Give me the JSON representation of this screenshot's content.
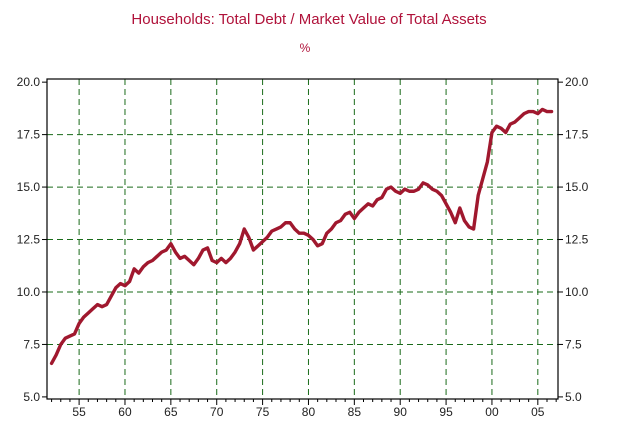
{
  "colors": {
    "title": "#b0123a",
    "line": "#a0182e",
    "grid": "#1a6b1a",
    "axis": "#000000",
    "background": "#ffffff"
  },
  "chart_data": {
    "type": "line",
    "title": "Households: Total Debt / Market Value of Total Assets",
    "unit": "%",
    "xlabel": "",
    "ylabel": "",
    "xlim": [
      1951.5,
      2007.2
    ],
    "ylim": [
      4.9,
      20.15
    ],
    "grid": true,
    "legend": "none",
    "y_ticks": [
      5.0,
      7.5,
      10.0,
      12.5,
      15.0,
      17.5,
      20.0
    ],
    "y_tick_labels": [
      "5.0",
      "7.5",
      "10.0",
      "12.5",
      "15.0",
      "17.5",
      "20.0"
    ],
    "x_ticks": [
      1955,
      1960,
      1965,
      1970,
      1975,
      1980,
      1985,
      1990,
      1995,
      2000,
      2005
    ],
    "x_tick_labels": [
      "55",
      "60",
      "65",
      "70",
      "75",
      "80",
      "85",
      "90",
      "95",
      "00",
      "05"
    ],
    "series": [
      {
        "name": "",
        "x": [
          1952.0,
          1952.5,
          1953.0,
          1953.5,
          1954.0,
          1954.5,
          1955.0,
          1955.5,
          1956.0,
          1956.5,
          1957.0,
          1957.5,
          1958.0,
          1958.5,
          1959.0,
          1959.5,
          1960.0,
          1960.5,
          1961.0,
          1961.5,
          1962.0,
          1962.5,
          1963.0,
          1963.5,
          1964.0,
          1964.5,
          1965.0,
          1965.5,
          1966.0,
          1966.5,
          1967.0,
          1967.5,
          1968.0,
          1968.5,
          1969.0,
          1969.5,
          1970.0,
          1970.5,
          1971.0,
          1971.5,
          1972.0,
          1972.5,
          1973.0,
          1973.5,
          1974.0,
          1974.5,
          1975.0,
          1975.5,
          1976.0,
          1976.5,
          1977.0,
          1977.5,
          1978.0,
          1978.5,
          1979.0,
          1979.5,
          1980.0,
          1980.5,
          1981.0,
          1981.5,
          1982.0,
          1982.5,
          1983.0,
          1983.5,
          1984.0,
          1984.5,
          1985.0,
          1985.5,
          1986.0,
          1986.5,
          1987.0,
          1987.5,
          1988.0,
          1988.5,
          1989.0,
          1989.5,
          1990.0,
          1990.5,
          1991.0,
          1991.5,
          1992.0,
          1992.5,
          1993.0,
          1993.5,
          1994.0,
          1994.5,
          1995.0,
          1995.5,
          1996.0,
          1996.5,
          1997.0,
          1997.5,
          1998.0,
          1998.5,
          1999.0,
          1999.5,
          2000.0,
          2000.5,
          2001.0,
          2001.5,
          2002.0,
          2002.5,
          2003.0,
          2003.5,
          2004.0,
          2004.5,
          2005.0,
          2005.5,
          2006.0,
          2006.5
        ],
        "values": [
          6.6,
          7.0,
          7.5,
          7.8,
          7.9,
          8.0,
          8.5,
          8.8,
          9.0,
          9.2,
          9.4,
          9.3,
          9.4,
          9.8,
          10.2,
          10.4,
          10.3,
          10.5,
          11.1,
          10.9,
          11.2,
          11.4,
          11.5,
          11.7,
          11.9,
          12.0,
          12.3,
          11.9,
          11.6,
          11.7,
          11.5,
          11.3,
          11.6,
          12.0,
          12.1,
          11.5,
          11.4,
          11.6,
          11.4,
          11.6,
          11.9,
          12.3,
          13.0,
          12.6,
          12.0,
          12.2,
          12.4,
          12.6,
          12.9,
          13.0,
          13.1,
          13.3,
          13.3,
          13.0,
          12.8,
          12.8,
          12.7,
          12.5,
          12.2,
          12.3,
          12.8,
          13.0,
          13.3,
          13.4,
          13.7,
          13.8,
          13.5,
          13.8,
          14.0,
          14.2,
          14.1,
          14.4,
          14.5,
          14.9,
          15.0,
          14.8,
          14.7,
          14.9,
          14.8,
          14.8,
          14.9,
          15.2,
          15.1,
          14.9,
          14.8,
          14.6,
          14.2,
          13.8,
          13.3,
          14.0,
          13.4,
          13.1,
          13.0,
          14.6,
          15.4,
          16.2,
          17.6,
          17.9,
          17.8,
          17.6,
          18.0,
          18.1,
          18.3,
          18.5,
          18.6,
          18.6,
          18.5,
          18.7,
          18.6,
          18.6
        ]
      }
    ]
  }
}
